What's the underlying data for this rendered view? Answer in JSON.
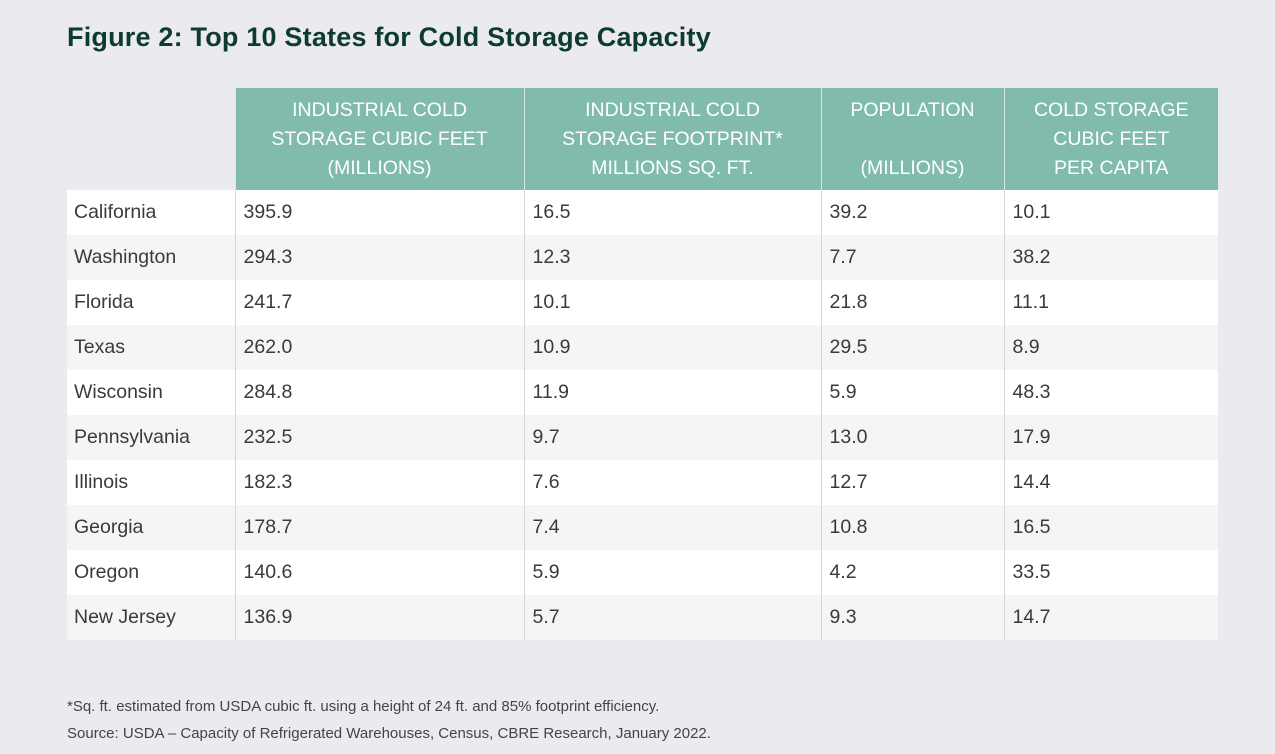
{
  "title": "Figure 2: Top 10 States for Cold Storage Capacity",
  "columns": [
    {
      "lines": [
        "INDUSTRIAL COLD",
        "STORAGE CUBIC FEET",
        "(MILLIONS)"
      ]
    },
    {
      "lines": [
        "INDUSTRIAL COLD",
        "STORAGE FOOTPRINT*",
        "MILLIONS SQ. FT."
      ]
    },
    {
      "lines": [
        "POPULATION",
        "",
        "(MILLIONS)"
      ]
    },
    {
      "lines": [
        "COLD STORAGE",
        "CUBIC FEET",
        "PER CAPITA"
      ]
    }
  ],
  "rows": [
    {
      "state": "California",
      "cubic_feet": "395.9",
      "footprint": "16.5",
      "population": "39.2",
      "per_capita": "10.1"
    },
    {
      "state": "Washington",
      "cubic_feet": "294.3",
      "footprint": "12.3",
      "population": "7.7",
      "per_capita": "38.2"
    },
    {
      "state": "Florida",
      "cubic_feet": "241.7",
      "footprint": "10.1",
      "population": "21.8",
      "per_capita": "11.1"
    },
    {
      "state": "Texas",
      "cubic_feet": "262.0",
      "footprint": "10.9",
      "population": "29.5",
      "per_capita": "8.9"
    },
    {
      "state": "Wisconsin",
      "cubic_feet": "284.8",
      "footprint": "11.9",
      "population": "5.9",
      "per_capita": "48.3"
    },
    {
      "state": "Pennsylvania",
      "cubic_feet": "232.5",
      "footprint": "9.7",
      "population": "13.0",
      "per_capita": "17.9"
    },
    {
      "state": "Illinois",
      "cubic_feet": "182.3",
      "footprint": "7.6",
      "population": "12.7",
      "per_capita": "14.4"
    },
    {
      "state": "Georgia",
      "cubic_feet": "178.7",
      "footprint": "7.4",
      "population": "10.8",
      "per_capita": "16.5"
    },
    {
      "state": "Oregon",
      "cubic_feet": "140.6",
      "footprint": "5.9",
      "population": "4.2",
      "per_capita": "33.5"
    },
    {
      "state": "New Jersey",
      "cubic_feet": "136.9",
      "footprint": "5.7",
      "population": "9.3",
      "per_capita": "14.7"
    }
  ],
  "footnotes": {
    "note": "*Sq. ft. estimated from USDA cubic ft. using a height of 24 ft. and 85% footprint efficiency.",
    "source": "Source: USDA – Capacity of Refrigerated Warehouses, Census, CBRE Research, January 2022."
  },
  "colors": {
    "header_bg": "#80bbad",
    "title": "#0d3b2e",
    "page_bg": "#ebebef"
  }
}
